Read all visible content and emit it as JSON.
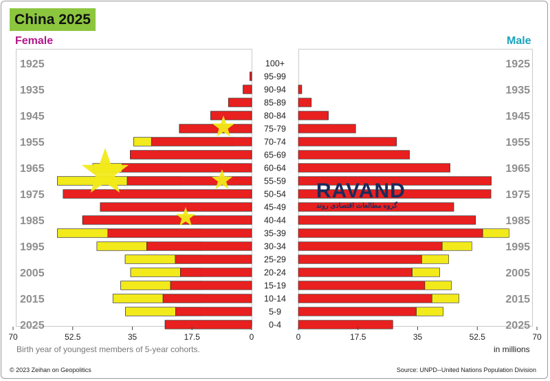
{
  "title": "China 2025",
  "female_label": "Female",
  "male_label": "Male",
  "footnote": "Birth year of youngest members of 5-year cohorts.",
  "units_label": "in millions",
  "copyright": "© 2023 Zeihan on Geopolitics",
  "source": "Source: UNPD--United Nations Population Division",
  "watermark": {
    "main": "RAVAND",
    "sub": "گروه مطالعات اقتصادی روند"
  },
  "colors": {
    "red": "#e8201f",
    "yellow": "#f2ea1a",
    "title_bg": "#8cc63f",
    "female": "#b0168c",
    "male": "#1aa3bd"
  },
  "chart_data": {
    "type": "bar",
    "orientation": "horizontal-pyramid",
    "title": "China 2025",
    "age_groups": [
      "100+",
      "95-99",
      "90-94",
      "85-89",
      "80-84",
      "75-79",
      "70-74",
      "65-69",
      "60-64",
      "55-59",
      "50-54",
      "45-49",
      "40-44",
      "35-39",
      "30-34",
      "25-29",
      "20-24",
      "15-19",
      "10-14",
      "5-9",
      "0-4"
    ],
    "birth_year_labels": [
      {
        "age_group": "100+",
        "year": "1925"
      },
      {
        "age_group": "90-94",
        "year": "1935"
      },
      {
        "age_group": "80-84",
        "year": "1945"
      },
      {
        "age_group": "70-74",
        "year": "1955"
      },
      {
        "age_group": "60-64",
        "year": "1965"
      },
      {
        "age_group": "50-54",
        "year": "1975"
      },
      {
        "age_group": "40-44",
        "year": "1985"
      },
      {
        "age_group": "30-34",
        "year": "1995"
      },
      {
        "age_group": "20-24",
        "year": "2005"
      },
      {
        "age_group": "10-14",
        "year": "2015"
      },
      {
        "age_group": "0-4",
        "year": "2025"
      }
    ],
    "series": [
      {
        "name": "Female",
        "values": [
          0,
          0.5,
          2.5,
          6.8,
          12,
          21.2,
          34.6,
          35.6,
          46.6,
          57,
          55.3,
          44.4,
          49.6,
          57,
          45.4,
          37.1,
          35.5,
          38.4,
          40.7,
          37,
          25.4
        ]
      },
      {
        "name": "Male",
        "values": [
          0,
          0,
          1,
          3.8,
          8.8,
          16.8,
          28.8,
          32.6,
          44.5,
          56.6,
          56.5,
          45.6,
          52,
          61.8,
          50.9,
          44.1,
          41.5,
          44.9,
          47.1,
          42.5,
          27.7
        ]
      }
    ],
    "xlim": [
      0,
      70
    ],
    "x_ticks": [
      "70",
      "52.5",
      "35",
      "17.5",
      "0",
      "0",
      "17.5",
      "35",
      "52.5",
      "70"
    ],
    "xlabel": "in millions",
    "grid": false,
    "legend": "none"
  }
}
